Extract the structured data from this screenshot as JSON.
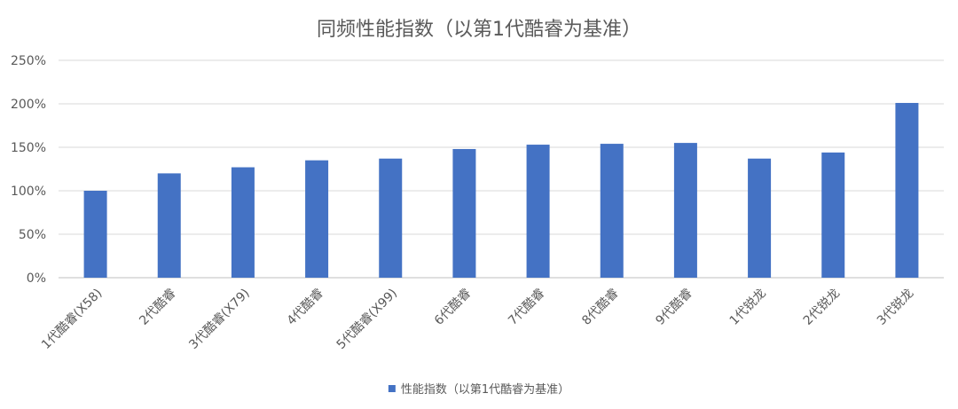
{
  "chart_data": {
    "type": "bar",
    "title": "同频性能指数（以第1代酷睿为基准）",
    "categories": [
      "1代酷睿(X58)",
      "2代酷睿",
      "3代酷睿(X79)",
      "4代酷睿",
      "5代酷睿(X99)",
      "6代酷睿",
      "7代酷睿",
      "8代酷睿",
      "9代酷睿",
      "1代锐龙",
      "2代锐龙",
      "3代锐龙"
    ],
    "series": [
      {
        "name": "性能指数（以第1代酷睿为基准）",
        "values": [
          100,
          120,
          127,
          135,
          137,
          148,
          153,
          154,
          155,
          137,
          144,
          201
        ],
        "color": "#4472c4"
      }
    ],
    "ylim": [
      0,
      250
    ],
    "yticks": [
      0,
      50,
      100,
      150,
      200,
      250
    ],
    "ytick_labels": [
      "0%",
      "50%",
      "100%",
      "150%",
      "200%",
      "250%"
    ],
    "grid": true,
    "legend_position": "bottom"
  }
}
